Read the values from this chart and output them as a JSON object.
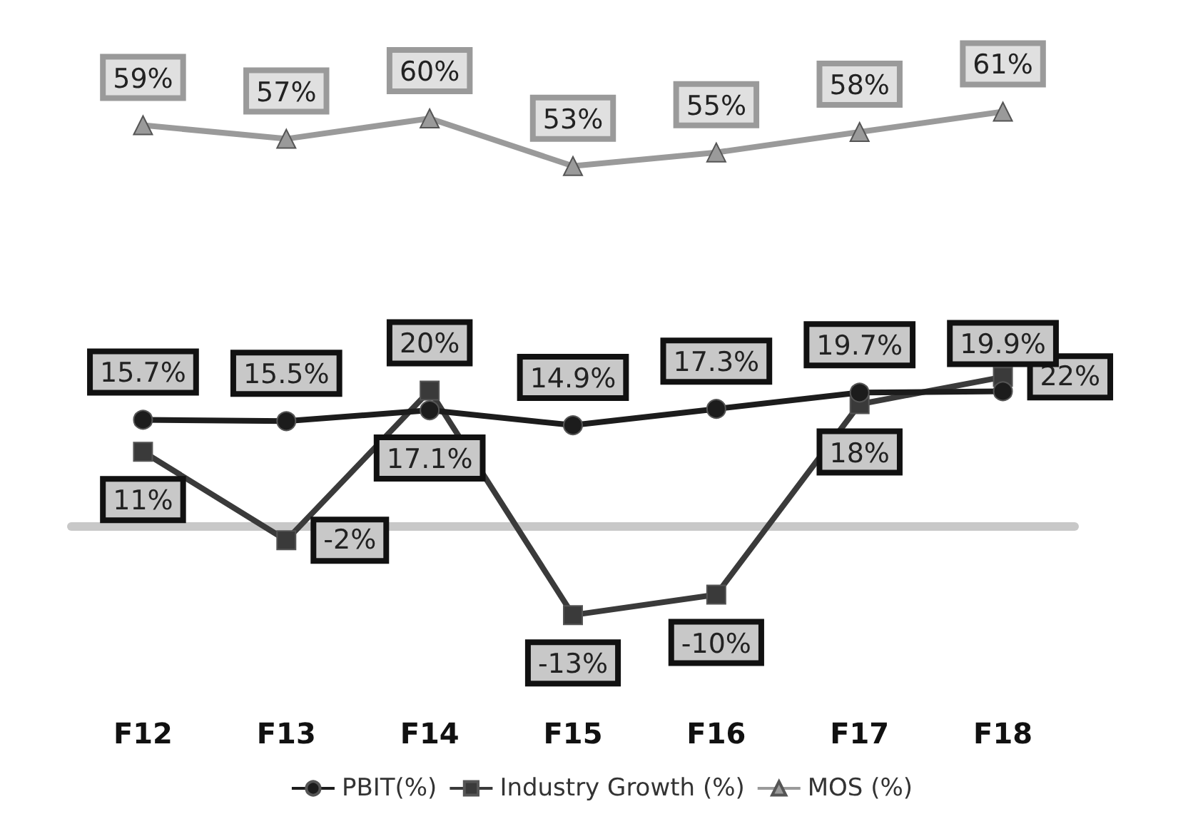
{
  "chart_data": {
    "type": "line",
    "categories": [
      "F12",
      "F13",
      "F14",
      "F15",
      "F16",
      "F17",
      "F18"
    ],
    "series": [
      {
        "name": "PBIT(%)",
        "color": "#1c1c1c",
        "marker": "circle",
        "values": [
          15.7,
          15.5,
          17.1,
          14.9,
          17.3,
          19.7,
          19.9
        ],
        "value_labels": [
          "15.7%",
          "15.5%",
          "17.1%",
          "14.9%",
          "17.3%",
          "19.7%",
          "19.9%"
        ]
      },
      {
        "name": "Industry Growth (%)",
        "color": "#3a3a3a",
        "marker": "square",
        "values": [
          11,
          -2,
          20,
          -13,
          -10,
          18,
          22
        ],
        "value_labels": [
          "11%",
          "-2%",
          "20%",
          "-13%",
          "-10%",
          "18%",
          "22%"
        ]
      },
      {
        "name": "MOS (%)",
        "color": "#9a9a9a",
        "marker": "triangle",
        "values": [
          59,
          57,
          60,
          53,
          55,
          58,
          61
        ],
        "value_labels": [
          "59%",
          "57%",
          "60%",
          "53%",
          "55%",
          "58%",
          "61%"
        ]
      }
    ],
    "tick_labels": "x",
    "legend": "bottom"
  }
}
